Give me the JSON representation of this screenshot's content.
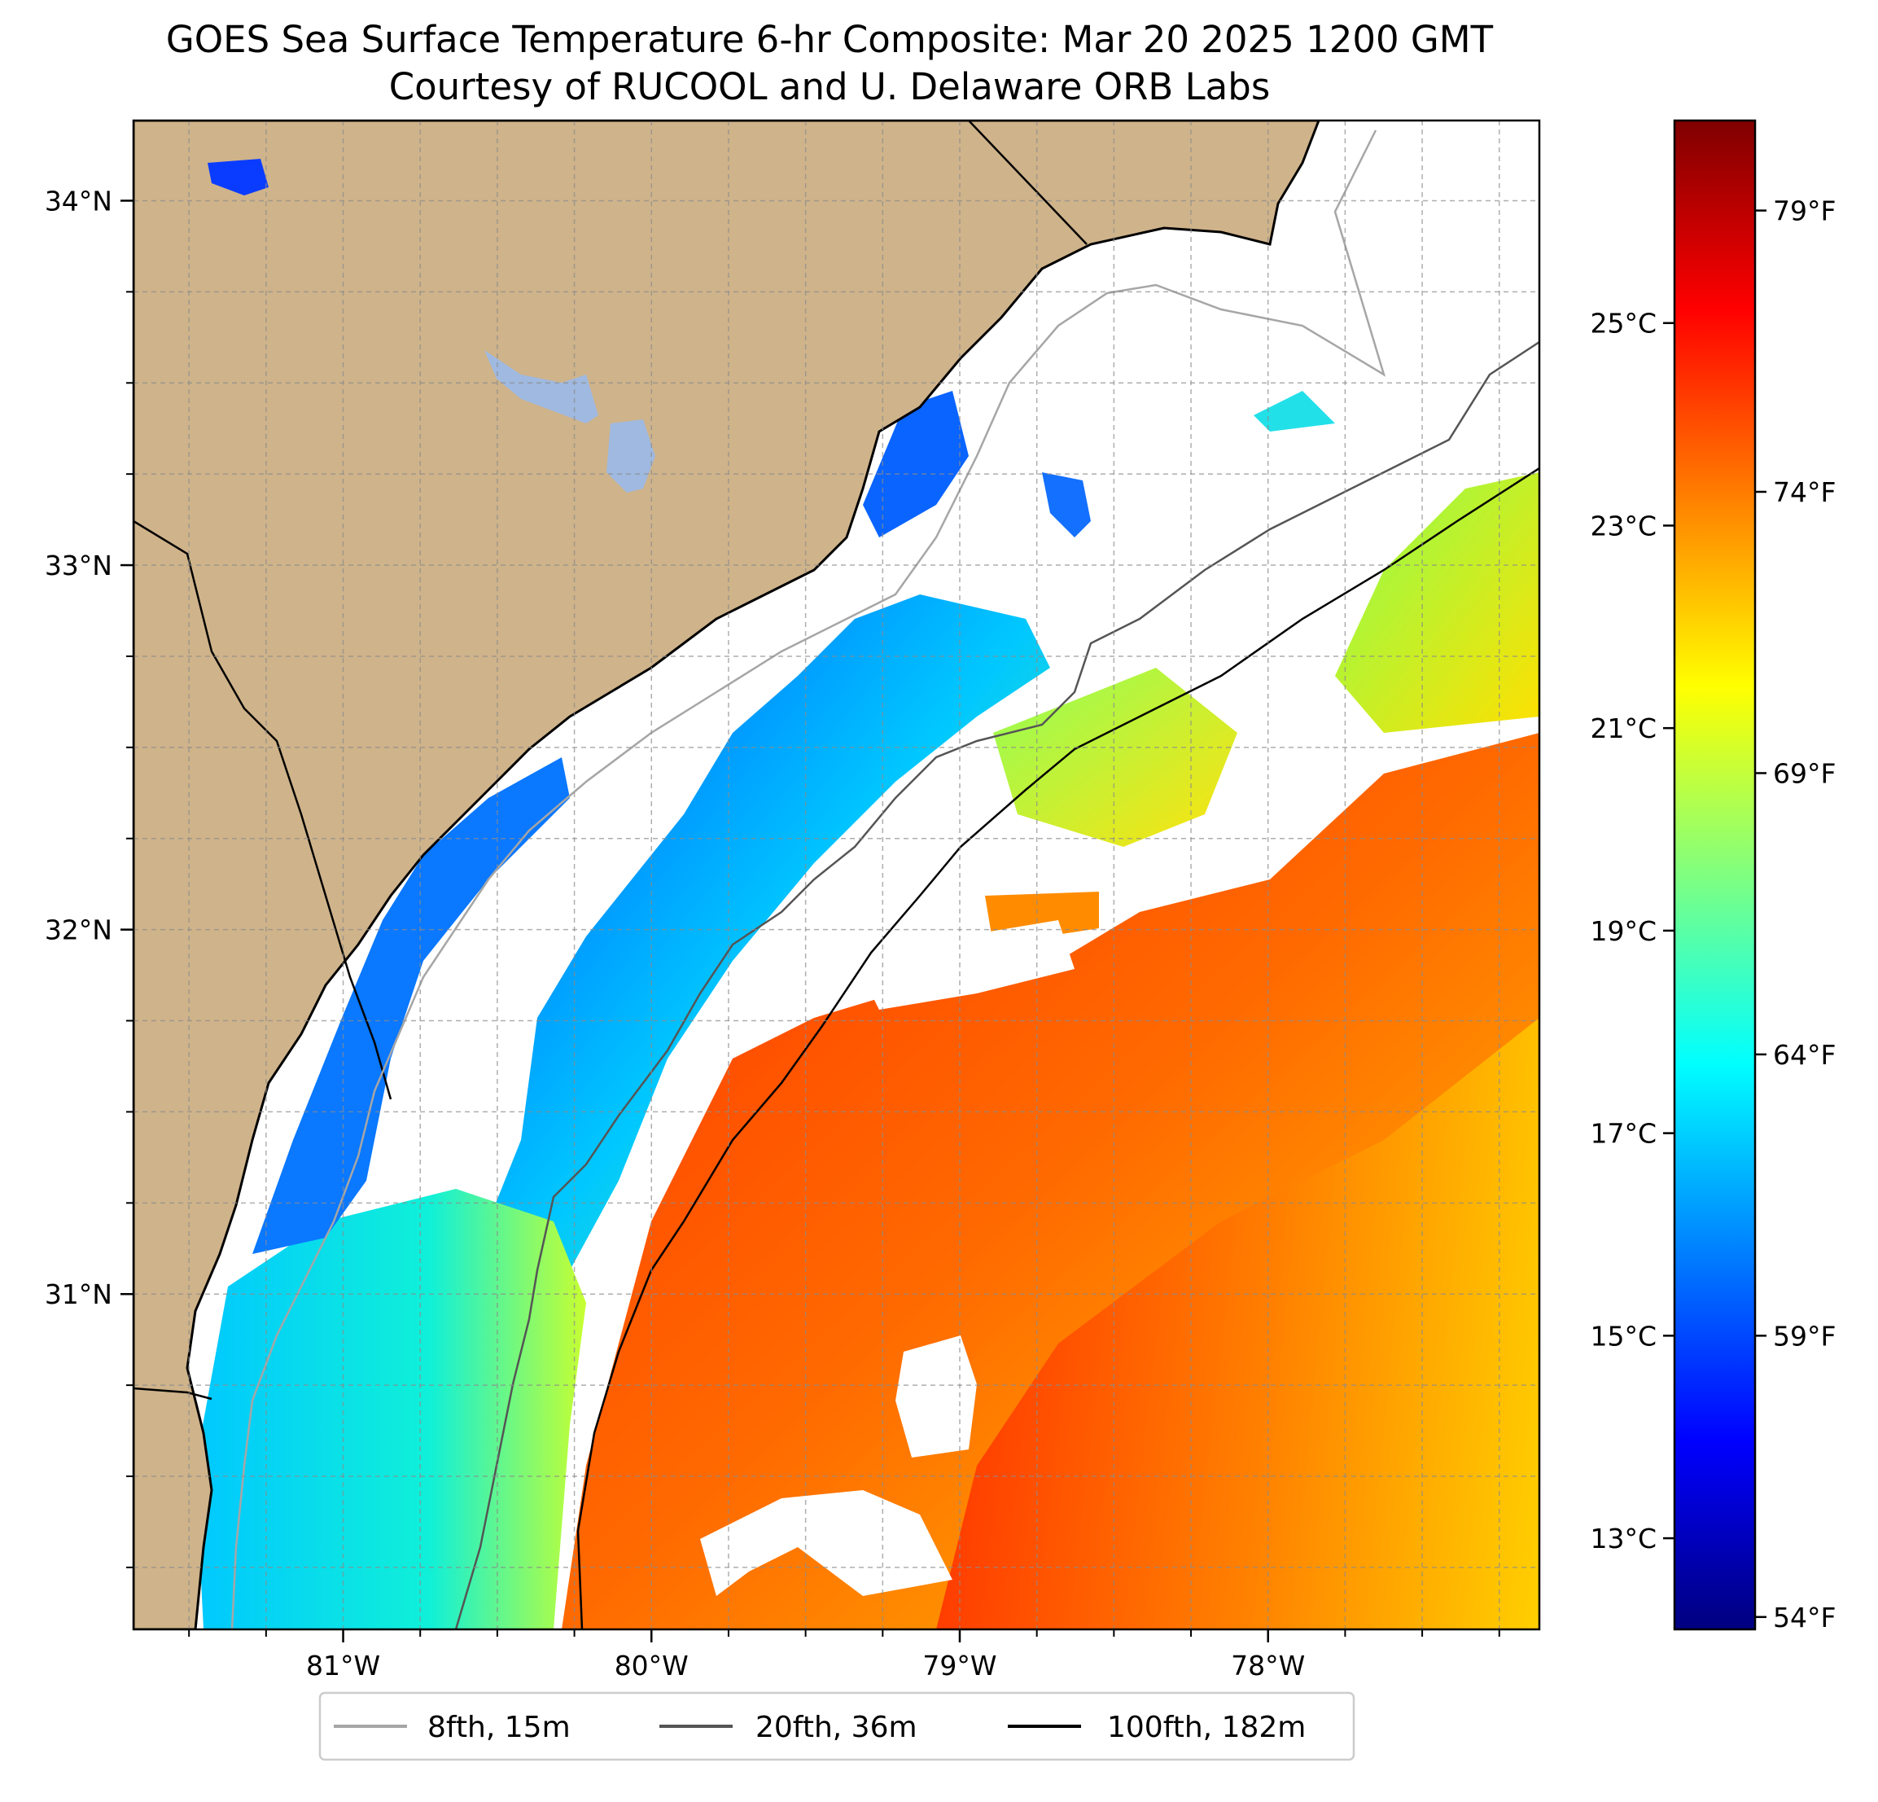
{
  "title": {
    "line1": "GOES Sea Surface Temperature 6-hr Composite: Mar 20 2025 1200 GMT",
    "line2": "Courtesy of RUCOOL and U. Delaware ORB Labs"
  },
  "map": {
    "lon_range": [
      -81.68,
      -77.12
    ],
    "lat_range": [
      30.08,
      34.22
    ],
    "x_ticks": [
      {
        "value": -81,
        "label": "81°W"
      },
      {
        "value": -80,
        "label": "80°W"
      },
      {
        "value": -79,
        "label": "79°W"
      },
      {
        "value": -78,
        "label": "78°W"
      }
    ],
    "y_ticks": [
      {
        "value": 34,
        "label": "34°N"
      },
      {
        "value": 33,
        "label": "33°N"
      },
      {
        "value": 32,
        "label": "32°N"
      },
      {
        "value": 31,
        "label": "31°N"
      }
    ],
    "grid": true,
    "land_color": "#cfb38a",
    "water_color": "#ffffff",
    "lake_color": "#9fb9e0"
  },
  "colorbar": {
    "celsius_range": [
      12.1,
      27.0
    ],
    "celsius_ticks": [
      {
        "value": 25,
        "label": "25°C"
      },
      {
        "value": 23,
        "label": "23°C"
      },
      {
        "value": 21,
        "label": "21°C"
      },
      {
        "value": 19,
        "label": "19°C"
      },
      {
        "value": 17,
        "label": "17°C"
      },
      {
        "value": 15,
        "label": "15°C"
      },
      {
        "value": 13,
        "label": "13°C"
      }
    ],
    "fahrenheit_ticks": [
      {
        "value": 79,
        "label": "79°F"
      },
      {
        "value": 74,
        "label": "74°F"
      },
      {
        "value": 69,
        "label": "69°F"
      },
      {
        "value": 64,
        "label": "64°F"
      },
      {
        "value": 59,
        "label": "59°F"
      },
      {
        "value": 54,
        "label": "54°F"
      }
    ],
    "colormap": "jet"
  },
  "legend": {
    "placement": "bottom-center",
    "entries": [
      {
        "label": "8fth, 15m",
        "color": "#a6a6a6"
      },
      {
        "label": "20fth, 36m",
        "color": "#555555"
      },
      {
        "label": "100fth, 182m",
        "color": "#000000"
      }
    ]
  }
}
